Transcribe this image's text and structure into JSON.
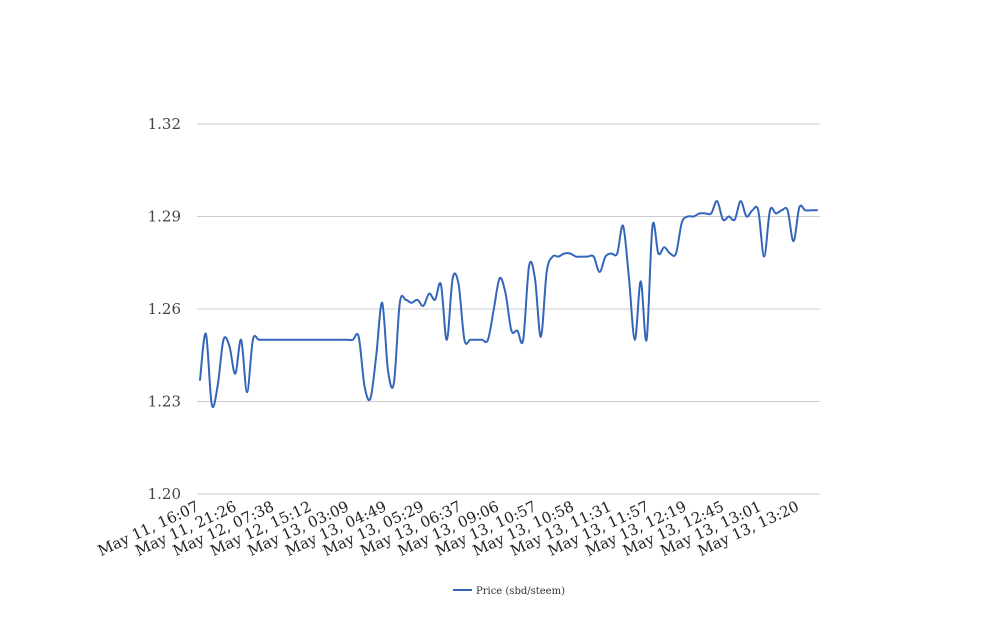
{
  "chart_data": {
    "type": "line",
    "title": "",
    "xlabel": "",
    "ylabel": "",
    "ylim": [
      1.2,
      1.32
    ],
    "yticks": [
      "1.20",
      "1.23",
      "1.26",
      "1.29",
      "1.32"
    ],
    "grid": true,
    "legend_position": "bottom-center",
    "xtick_labels": [
      "May 11, 16:07",
      "May 11, 21:26",
      "May 12, 07:38",
      "May 12, 15:12",
      "May 13, 03:09",
      "May 13, 04:49",
      "May 13, 05:29",
      "May 13, 06:37",
      "May 13, 09:06",
      "May 13, 10:57",
      "May 13, 10:58",
      "May 13, 11:31",
      "May 13, 11:57",
      "May 13, 12:19",
      "May 13, 12:45",
      "May 13, 13:01",
      "May 13, 13:20"
    ],
    "series": [
      {
        "name": "Price (sbd/steem)",
        "color": "#3366bb",
        "values": [
          1.237,
          1.252,
          1.229,
          1.235,
          1.25,
          1.248,
          1.239,
          1.25,
          1.233,
          1.25,
          1.25,
          1.25,
          1.25,
          1.25,
          1.25,
          1.25,
          1.25,
          1.25,
          1.25,
          1.25,
          1.25,
          1.25,
          1.25,
          1.25,
          1.25,
          1.25,
          1.25,
          1.251,
          1.235,
          1.231,
          1.245,
          1.262,
          1.24,
          1.236,
          1.262,
          1.263,
          1.262,
          1.263,
          1.261,
          1.265,
          1.263,
          1.268,
          1.25,
          1.27,
          1.268,
          1.25,
          1.25,
          1.25,
          1.25,
          1.25,
          1.26,
          1.27,
          1.265,
          1.253,
          1.253,
          1.25,
          1.274,
          1.27,
          1.251,
          1.272,
          1.277,
          1.277,
          1.278,
          1.278,
          1.277,
          1.277,
          1.277,
          1.277,
          1.272,
          1.277,
          1.278,
          1.278,
          1.287,
          1.27,
          1.25,
          1.269,
          1.25,
          1.287,
          1.278,
          1.28,
          1.278,
          1.278,
          1.288,
          1.29,
          1.29,
          1.291,
          1.291,
          1.291,
          1.295,
          1.289,
          1.29,
          1.289,
          1.295,
          1.29,
          1.292,
          1.292,
          1.277,
          1.292,
          1.291,
          1.292,
          1.292,
          1.282,
          1.293,
          1.292,
          1.292,
          1.292
        ]
      }
    ]
  }
}
